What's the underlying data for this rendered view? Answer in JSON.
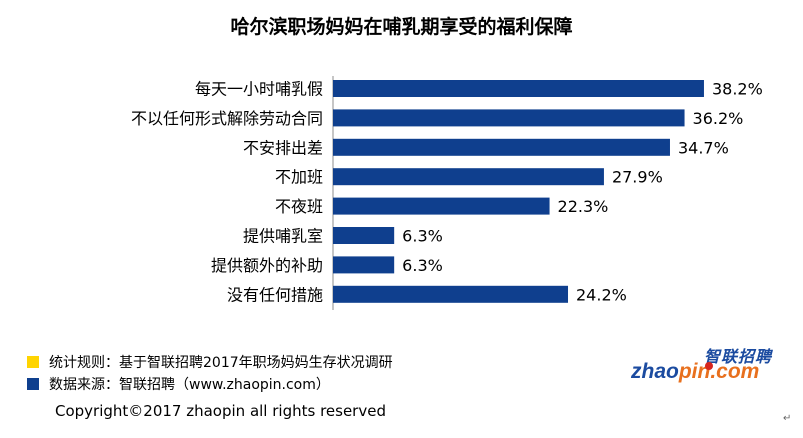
{
  "chart_data": {
    "type": "bar",
    "orientation": "horizontal",
    "title": "哈尔滨职场妈妈在哺乳期享受的福利保障",
    "categories": [
      "每天一小时哺乳假",
      "不以任何形式解除劳动合同",
      "不安排出差",
      "不加班",
      "不夜班",
      "提供哺乳室",
      "提供额外的补助",
      "没有任何措施"
    ],
    "values": [
      38.2,
      36.2,
      34.7,
      27.9,
      22.3,
      6.3,
      6.3,
      24.2
    ],
    "value_labels": [
      "38.2%",
      "36.2%",
      "34.7%",
      "27.9%",
      "22.3%",
      "6.3%",
      "6.3%",
      "24.2%"
    ],
    "unit": "%",
    "xlim": [
      0,
      45
    ],
    "bar_color": "#0f3f8e",
    "grid": false,
    "legend": false
  },
  "notes": [
    {
      "swatch_color": "#ffd400",
      "text": "统计规则：基于智联招聘2017年职场妈妈生存状况调研"
    },
    {
      "swatch_color": "#0f3f8e",
      "text": "数据来源：智联招聘（www.zhaopin.com）"
    }
  ],
  "logo": {
    "cn": "智联招聘",
    "en_part1": "zhao",
    "en_part2": "pin.com"
  },
  "copyright": "Copyright©2017 zhaopin all rights reserved",
  "corner_mark": "↵"
}
